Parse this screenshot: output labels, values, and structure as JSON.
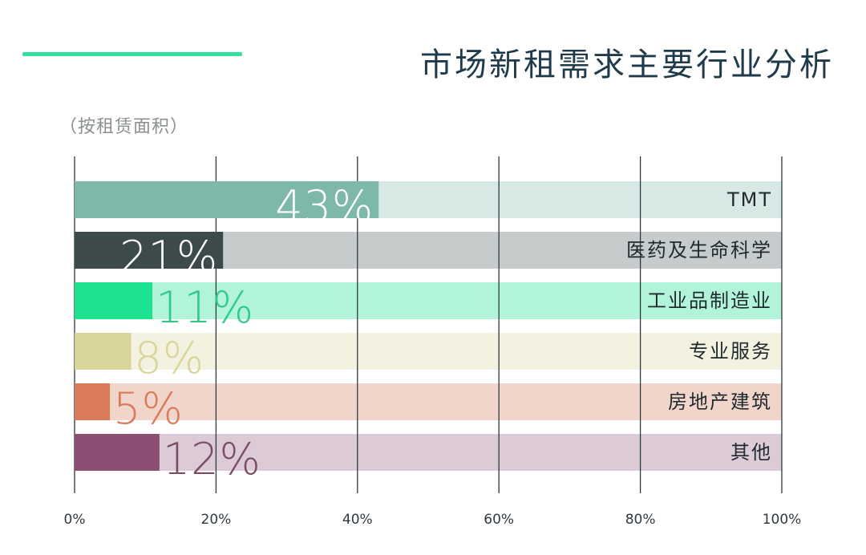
{
  "chart_data": {
    "type": "bar",
    "orientation": "horizontal",
    "stacked_to_100": true,
    "title": "市场新租需求主要行业分析",
    "subtitle": "（按租赁面积）",
    "xlim": [
      0,
      100
    ],
    "x_ticks": [
      "0%",
      "20%",
      "40%",
      "60%",
      "80%",
      "100%"
    ],
    "grid": true,
    "categories": [
      "TMT",
      "医药及生命科学",
      "工业品制造业",
      "专业服务",
      "房地产建筑",
      "其他"
    ],
    "values": [
      43,
      21,
      11,
      8,
      5,
      12
    ],
    "data_labels": [
      "43%",
      "21%",
      "11%",
      "8%",
      "5%",
      "12%"
    ],
    "colors": {
      "fill": [
        "#7db8aa",
        "#3d4a4a",
        "#1de28f",
        "#d9d49a",
        "#d97a5a",
        "#8a4f72"
      ],
      "track": [
        "#d8e9e5",
        "#c6cbcb",
        "#b2f4d9",
        "#f3f1df",
        "#f1d5ca",
        "#dccad6"
      ],
      "label": [
        "#ffffff",
        "#ffffff",
        "#2fc98a",
        "#d9d49a",
        "#d97a5a",
        "#7a4c68"
      ],
      "accent": "#33e0a1",
      "title": "#1f3a4a"
    }
  }
}
